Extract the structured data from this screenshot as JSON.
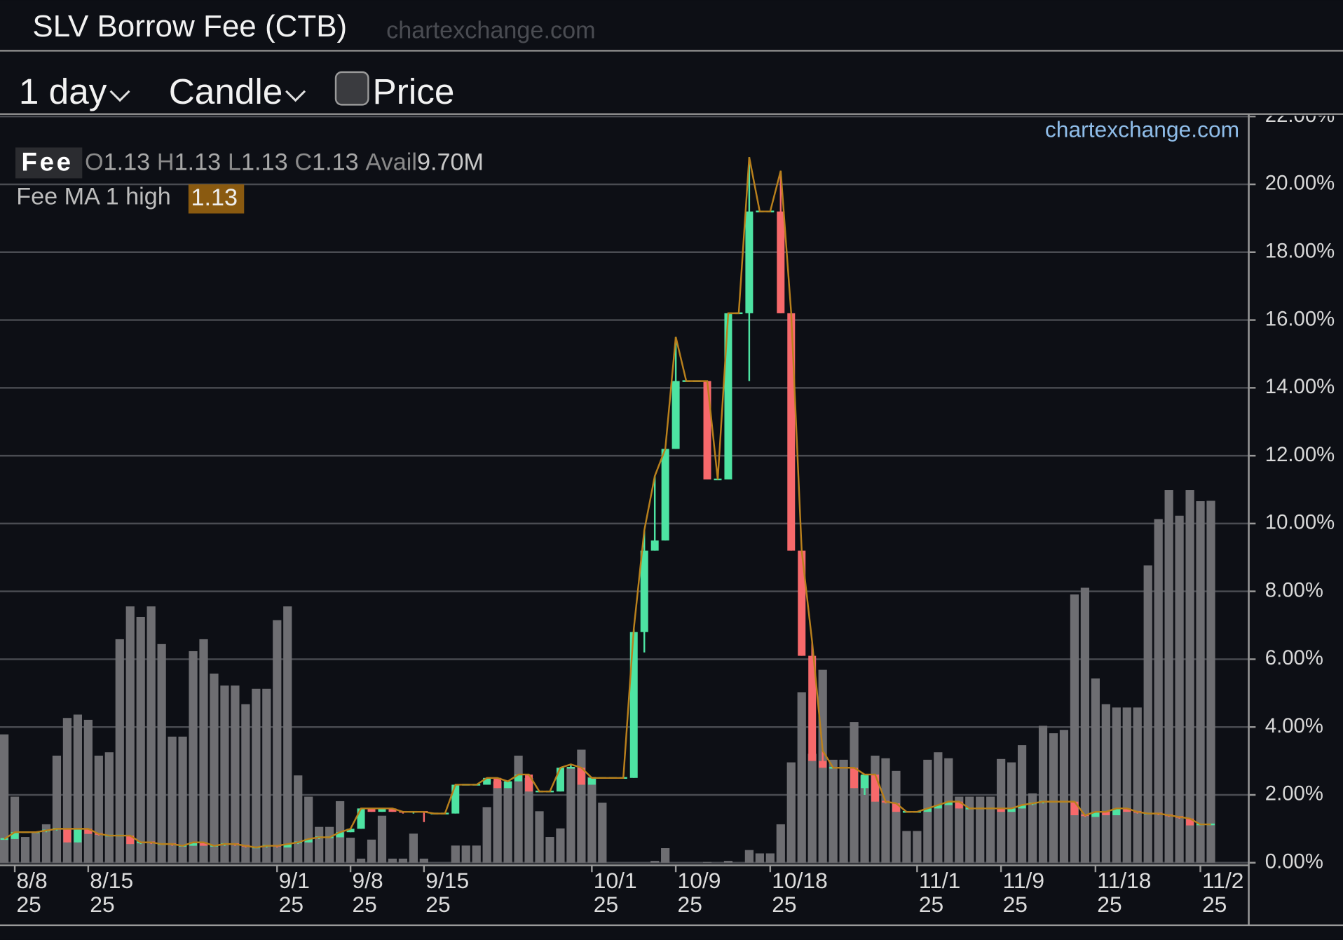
{
  "header": {
    "title": "SLV Borrow Fee (CTB)",
    "site": "chartexchange.com"
  },
  "toolbar": {
    "interval": "1 day",
    "style": "Candle",
    "price": "Price"
  },
  "chart_data": {
    "type": "candlestick",
    "watermark": "chartexchange.com",
    "legend": {
      "name": "Fee",
      "open": "O",
      "high": "H",
      "low": "L",
      "close": "C",
      "avail": "Avail",
      "avail_value": "9.70M",
      "ma": "Fee MA 1 high"
    },
    "categories": [
      null,
      "8/8\n25",
      null,
      null,
      null,
      null,
      null,
      null,
      "8/15\n25",
      null,
      null,
      null,
      null,
      null,
      null,
      null,
      null,
      null,
      null,
      null,
      null,
      null,
      null,
      null,
      null,
      null,
      "9/1\n25",
      null,
      null,
      null,
      null,
      null,
      null,
      "9/8\n25",
      null,
      null,
      null,
      null,
      null,
      null,
      "9/15\n25",
      null,
      null,
      null,
      null,
      null,
      null,
      null,
      null,
      null,
      null,
      null,
      null,
      null,
      null,
      null,
      "10/1\n25",
      null,
      null,
      null,
      null,
      null,
      null,
      null,
      "10/9\n25",
      null,
      null,
      null,
      null,
      null,
      null,
      null,
      null,
      "10/18\n25",
      null,
      null,
      null,
      null,
      null,
      null,
      null,
      null,
      null,
      null,
      null,
      null,
      null,
      "11/1\n25",
      null,
      null,
      null,
      null,
      null,
      null,
      null,
      "11/9\n25",
      null,
      null,
      null,
      null,
      null,
      null,
      null,
      null,
      "11/18\n25",
      null,
      null,
      null,
      null,
      null,
      null,
      null,
      null,
      null,
      "11/2\n25",
      null
    ],
    "open": [
      0.7,
      0.7,
      0.9,
      0.9,
      0.9,
      0.95,
      1.0,
      0.6,
      1.0,
      0.85,
      0.8,
      0.8,
      0.8,
      0.55,
      0.6,
      0.55,
      0.55,
      0.5,
      0.5,
      0.6,
      0.5,
      0.5,
      0.55,
      0.5,
      0.45,
      0.45,
      0.5,
      0.45,
      0.55,
      0.6,
      0.7,
      0.75,
      0.75,
      0.9,
      1.0,
      1.6,
      1.5,
      1.6,
      1.5,
      1.45,
      1.5,
      1.45,
      1.45,
      1.45,
      2.3,
      2.3,
      2.3,
      2.5,
      2.2,
      2.4,
      2.6,
      2.1,
      2.1,
      2.1,
      2.8,
      2.8,
      2.3,
      2.5,
      2.5,
      2.5,
      2.5,
      6.8,
      9.2,
      9.5,
      12.2,
      14.2,
      14.2,
      14.2,
      11.3,
      11.3,
      16.2,
      16.2,
      19.2,
      19.2,
      19.2,
      16.2,
      9.2,
      6.1,
      3.0,
      2.8,
      2.8,
      2.8,
      2.2,
      2.6,
      1.8,
      1.75,
      1.5,
      1.5,
      1.5,
      1.6,
      1.7,
      1.8,
      1.6,
      1.6,
      1.6,
      1.6,
      1.5,
      1.6,
      1.7,
      1.75,
      1.8,
      1.8,
      1.8,
      1.4,
      1.35,
      1.5,
      1.4,
      1.6,
      1.5,
      1.45,
      1.45,
      1.4,
      1.35,
      1.3,
      1.1,
      1.13
    ],
    "high": [
      0.7,
      0.9,
      0.9,
      0.9,
      0.95,
      1.0,
      1.0,
      1.0,
      1.0,
      0.85,
      0.8,
      0.8,
      0.8,
      0.6,
      0.6,
      0.55,
      0.55,
      0.5,
      0.6,
      0.6,
      0.5,
      0.55,
      0.55,
      0.5,
      0.45,
      0.5,
      0.5,
      0.55,
      0.6,
      0.7,
      0.75,
      0.75,
      0.9,
      1.0,
      1.6,
      1.6,
      1.6,
      1.6,
      1.5,
      1.5,
      1.5,
      1.45,
      1.45,
      2.3,
      2.3,
      2.3,
      2.5,
      2.5,
      2.4,
      2.6,
      2.6,
      2.1,
      2.1,
      2.8,
      2.9,
      2.8,
      2.5,
      2.5,
      2.5,
      2.5,
      6.9,
      9.8,
      11.4,
      12.2,
      15.5,
      14.2,
      14.2,
      14.2,
      11.3,
      16.2,
      16.2,
      20.8,
      19.2,
      19.2,
      20.4,
      16.2,
      9.2,
      6.5,
      3.3,
      2.8,
      2.8,
      2.8,
      2.6,
      2.6,
      1.8,
      1.75,
      1.5,
      1.5,
      1.6,
      1.7,
      1.8,
      1.8,
      1.6,
      1.6,
      1.6,
      1.6,
      1.6,
      1.7,
      1.75,
      1.8,
      1.8,
      1.8,
      1.8,
      1.4,
      1.5,
      1.5,
      1.6,
      1.6,
      1.5,
      1.45,
      1.45,
      1.4,
      1.35,
      1.3,
      1.13,
      1.13
    ],
    "low": [
      0.7,
      0.7,
      0.9,
      0.9,
      0.9,
      0.95,
      0.6,
      0.6,
      0.85,
      0.8,
      0.8,
      0.8,
      0.55,
      0.55,
      0.55,
      0.55,
      0.5,
      0.5,
      0.5,
      0.5,
      0.5,
      0.5,
      0.5,
      0.45,
      0.45,
      0.45,
      0.45,
      0.45,
      0.55,
      0.6,
      0.7,
      0.75,
      0.75,
      0.9,
      1.0,
      1.5,
      1.5,
      1.5,
      1.45,
      1.45,
      1.2,
      1.45,
      1.45,
      1.45,
      2.3,
      2.3,
      2.3,
      2.2,
      2.2,
      2.4,
      2.1,
      2.1,
      2.1,
      2.1,
      2.8,
      2.3,
      2.3,
      2.5,
      2.5,
      2.5,
      2.5,
      6.2,
      9.2,
      9.5,
      12.2,
      14.2,
      14.2,
      11.3,
      11.3,
      11.3,
      16.2,
      14.2,
      19.2,
      19.2,
      16.2,
      9.2,
      6.1,
      3.0,
      2.8,
      2.8,
      2.8,
      2.2,
      2.0,
      1.8,
      1.75,
      1.5,
      1.5,
      1.5,
      1.5,
      1.6,
      1.7,
      1.6,
      1.6,
      1.6,
      1.6,
      1.5,
      1.5,
      1.6,
      1.7,
      1.75,
      1.8,
      1.8,
      1.4,
      1.35,
      1.35,
      1.4,
      1.4,
      1.5,
      1.45,
      1.45,
      1.4,
      1.35,
      1.3,
      1.1,
      1.1,
      1.13
    ],
    "close": [
      0.7,
      0.9,
      0.9,
      0.9,
      0.95,
      1.0,
      0.6,
      1.0,
      0.85,
      0.8,
      0.8,
      0.8,
      0.55,
      0.6,
      0.55,
      0.55,
      0.5,
      0.5,
      0.6,
      0.5,
      0.5,
      0.55,
      0.5,
      0.45,
      0.45,
      0.5,
      0.45,
      0.55,
      0.6,
      0.7,
      0.75,
      0.75,
      0.9,
      1.0,
      1.6,
      1.5,
      1.6,
      1.5,
      1.45,
      1.5,
      1.45,
      1.45,
      1.45,
      2.3,
      2.3,
      2.3,
      2.5,
      2.2,
      2.4,
      2.6,
      2.1,
      2.1,
      2.1,
      2.8,
      2.8,
      2.3,
      2.5,
      2.5,
      2.5,
      2.5,
      6.8,
      9.2,
      9.5,
      12.2,
      14.2,
      14.2,
      14.2,
      11.3,
      11.3,
      16.2,
      16.2,
      19.2,
      19.2,
      19.2,
      16.2,
      9.2,
      6.1,
      3.0,
      2.8,
      2.8,
      2.8,
      2.2,
      2.6,
      1.8,
      1.75,
      1.5,
      1.5,
      1.5,
      1.6,
      1.7,
      1.8,
      1.6,
      1.6,
      1.6,
      1.6,
      1.5,
      1.6,
      1.7,
      1.75,
      1.8,
      1.8,
      1.8,
      1.4,
      1.35,
      1.5,
      1.4,
      1.6,
      1.5,
      1.45,
      1.45,
      1.4,
      1.35,
      1.3,
      1.1,
      1.13,
      1.13
    ],
    "avail": [
      3.44,
      1.77,
      0.69,
      0.8,
      1.03,
      2.87,
      3.88,
      3.97,
      3.83,
      2.87,
      2.96,
      5.99,
      6.87,
      6.59,
      6.87,
      5.86,
      3.38,
      3.38,
      5.67,
      5.99,
      5.07,
      4.75,
      4.75,
      4.25,
      4.66,
      4.66,
      6.5,
      6.87,
      2.34,
      1.77,
      0.96,
      0.96,
      1.65,
      0.67,
      0.11,
      0.62,
      1.26,
      0.11,
      0.11,
      0.78,
      0.11,
      0,
      0,
      0.46,
      0.46,
      0.46,
      1.49,
      2.18,
      2.18,
      2.87,
      2.27,
      1.38,
      0.69,
      0.92,
      2.57,
      3.03,
      2.3,
      1.61,
      0,
      0,
      0,
      0,
      0.05,
      0.39,
      0,
      0,
      0,
      0.02,
      0,
      0.05,
      0,
      0.34,
      0.25,
      0.25,
      1.03,
      2.69,
      4.57,
      2.92,
      5.17,
      2.76,
      2.76,
      3.77,
      2.34,
      2.87,
      2.8,
      2.46,
      0.85,
      0.85,
      2.76,
      2.96,
      2.8,
      1.77,
      1.77,
      1.77,
      1.77,
      2.78,
      2.69,
      3.15,
      1.86,
      3.67,
      3.47,
      3.56,
      7.19,
      7.37,
      4.94,
      4.25,
      4.16,
      4.16,
      4.16,
      7.97,
      9.21,
      9.99,
      9.3,
      9.99,
      9.69,
      9.7
    ],
    "up_color": "#4de3a2",
    "down_color": "#f7696b",
    "avail_color": "#6e6e72",
    "ma_color": "#b9801c",
    "ylim": [
      0,
      22
    ],
    "yticks": [
      {
        "value": 0,
        "label": "0.00%"
      },
      {
        "value": 2,
        "label": "2.00%"
      },
      {
        "value": 4,
        "label": "4.00%"
      },
      {
        "value": 6,
        "label": "6.00%"
      },
      {
        "value": 8,
        "label": "8.00%"
      },
      {
        "value": 10,
        "label": "10.00%"
      },
      {
        "value": 12,
        "label": "12.00%"
      },
      {
        "value": 14,
        "label": "14.00%"
      },
      {
        "value": 16,
        "label": "16.00%"
      },
      {
        "value": 18,
        "label": "18.00%"
      },
      {
        "value": 20,
        "label": "20.00%"
      },
      {
        "value": 22,
        "label": "22.00%"
      }
    ],
    "y2lim": [
      0,
      20
    ],
    "grid": true
  }
}
